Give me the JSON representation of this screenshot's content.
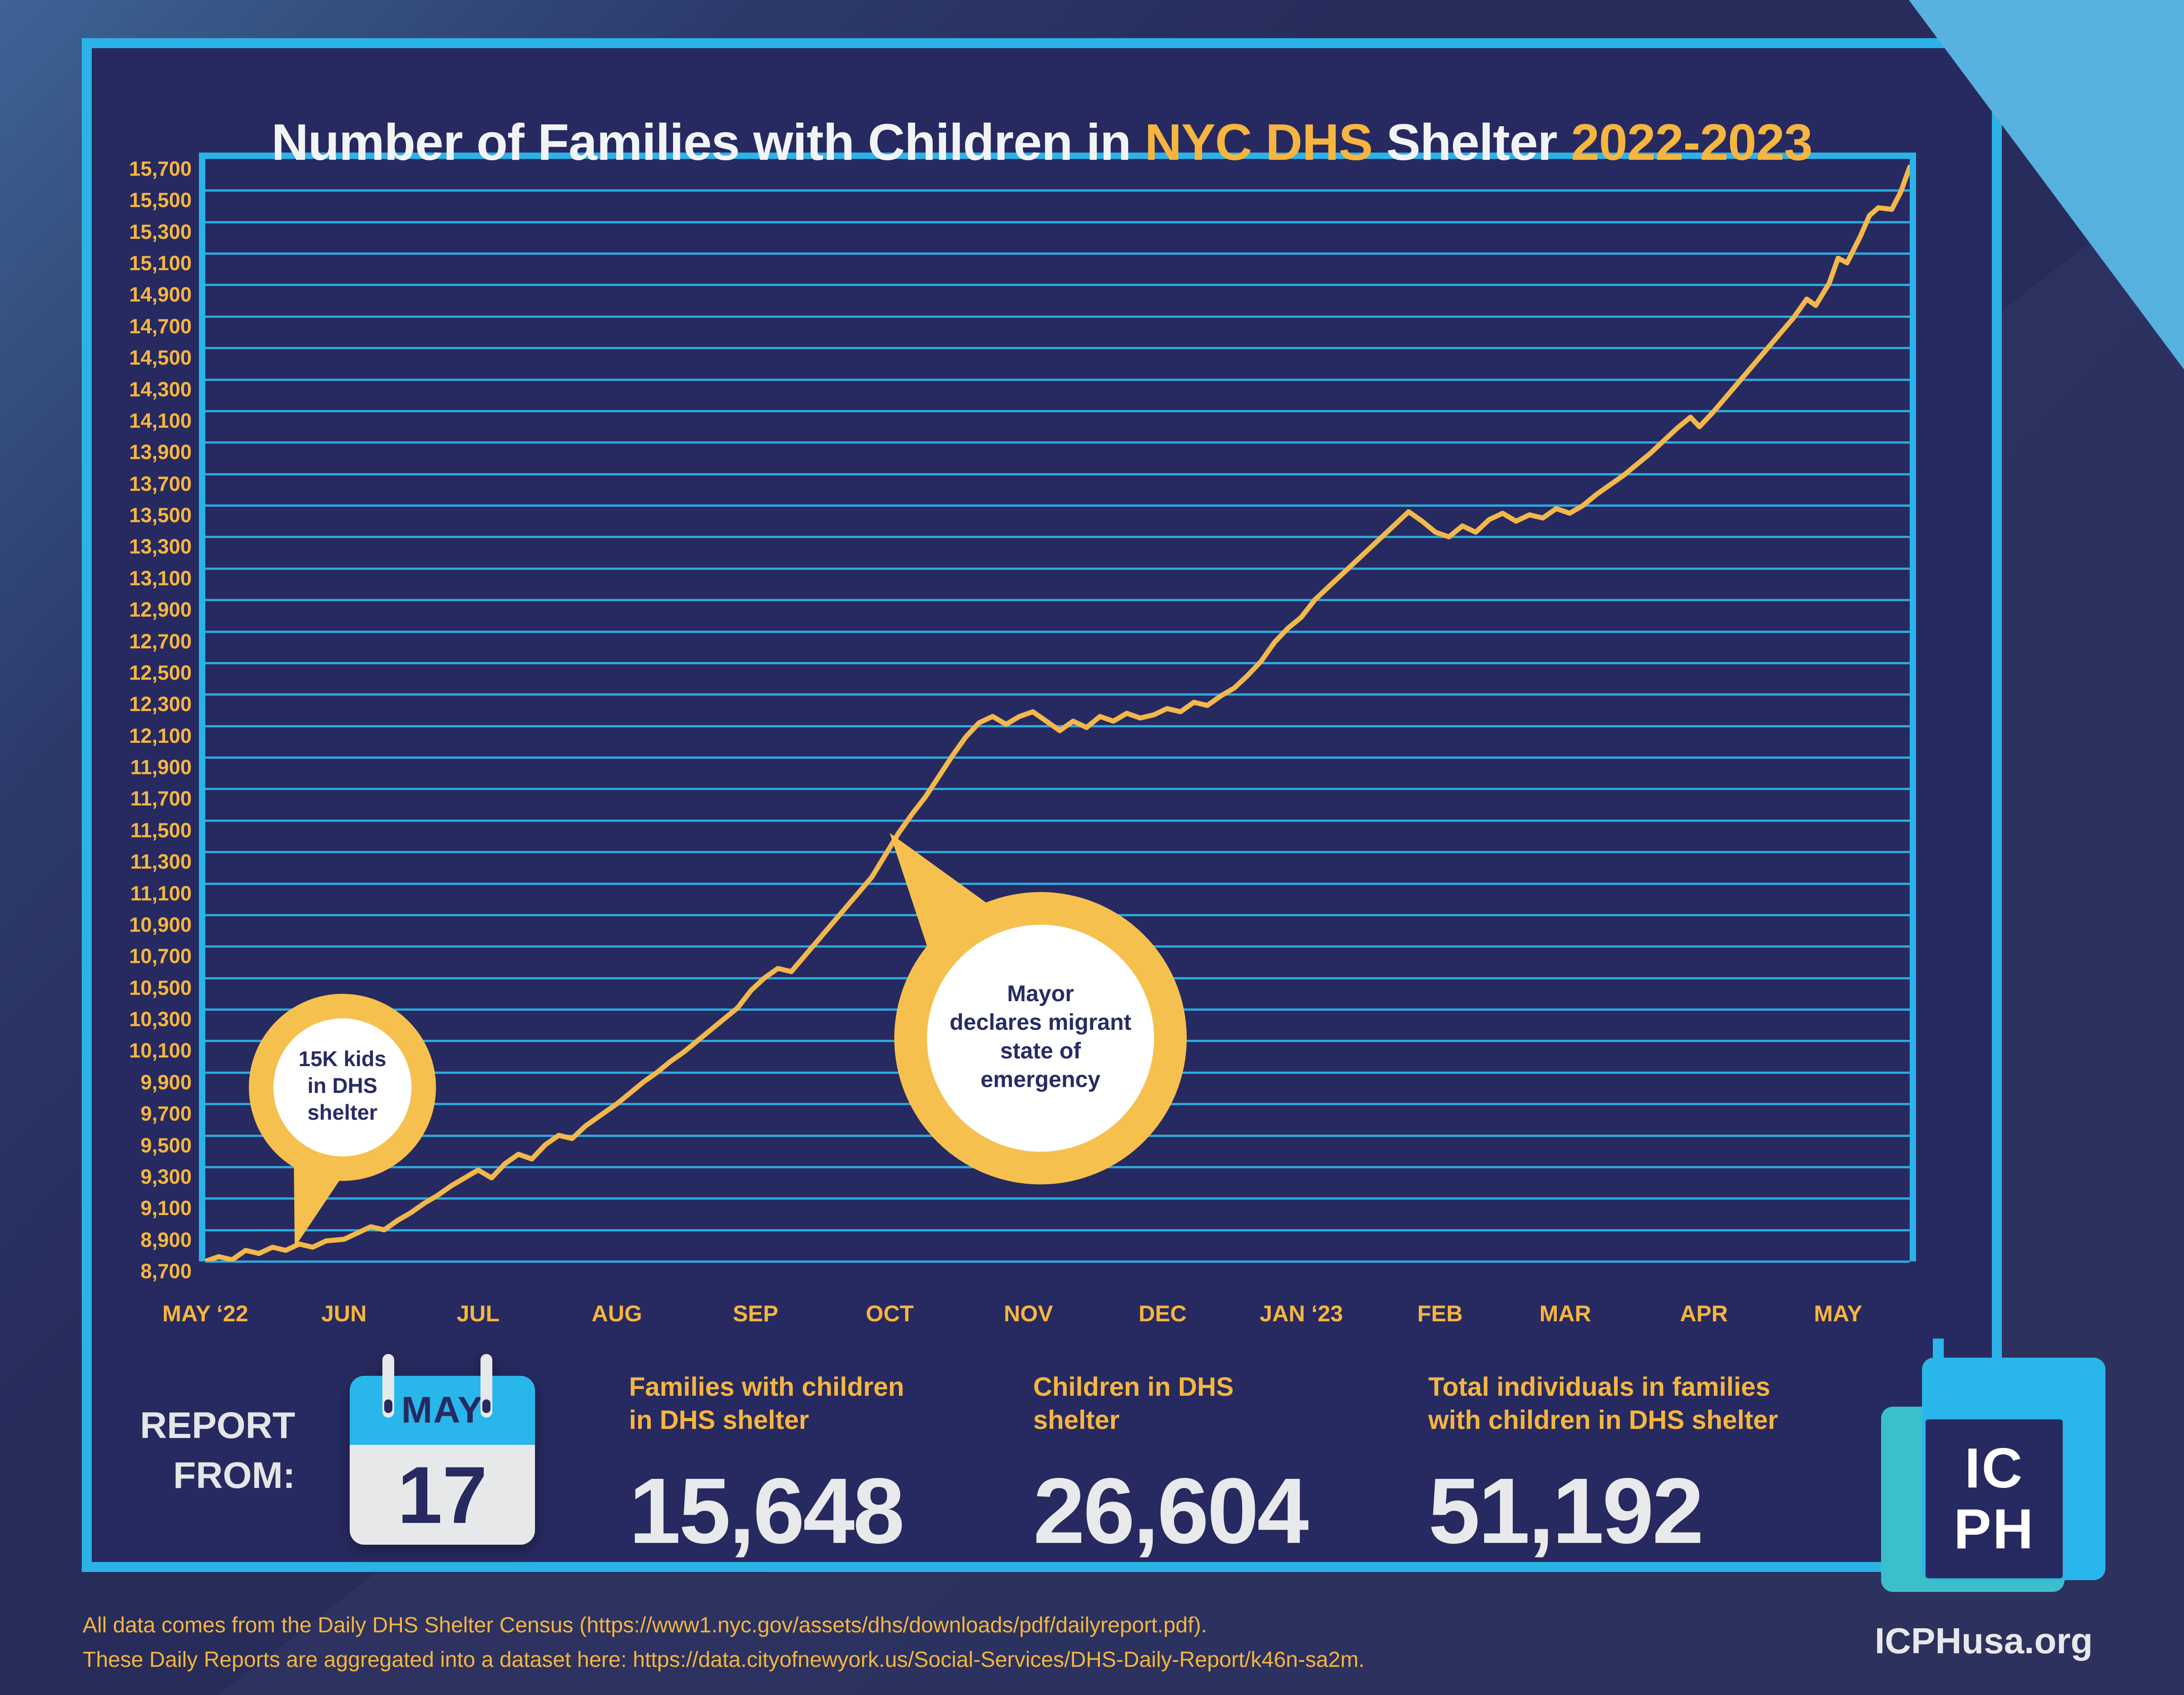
{
  "title": {
    "part1": "Number of Families with Children in ",
    "highlight1": "NYC DHS",
    "part2": " Shelter ",
    "highlight2": "2022-2023"
  },
  "colors": {
    "panel_navy": "#272A60",
    "panel_border_cyan": "#2BB3E8",
    "gridline_cyan": "#2BB0E5",
    "line_gold": "#F2B84B",
    "label_gold": "#F5B53F",
    "bubble_gold": "#F6C04E",
    "bubble_text_navy": "#282B63",
    "text_light_gray": "#E7E8EA",
    "calendar_blue": "#29B6EA",
    "logo_teal": "#3ABFCB",
    "logo_blue": "#29B6EA",
    "corner_light_blue": "#55B0E0",
    "outer_steel_blue": "#3E6396",
    "outer_dark_navy": "#262B58"
  },
  "chart_data": {
    "type": "line",
    "title": "Number of Families with Children in NYC DHS Shelter 2022-2023",
    "xlabel": "",
    "ylabel": "Families with children in DHS shelter",
    "ylim": [
      8700,
      15700
    ],
    "ytick_step": 200,
    "grid": "horizontal cyan gridlines at every 200",
    "legend": "none",
    "x_axis": {
      "start_label": "MAY ‘22",
      "end_date_shown": "MAY 17 2023",
      "months": [
        {
          "label": "MAY ‘22",
          "day": 0
        },
        {
          "label": "JUN",
          "day": 31
        },
        {
          "label": "JUL",
          "day": 61
        },
        {
          "label": "AUG",
          "day": 92
        },
        {
          "label": "SEP",
          "day": 123
        },
        {
          "label": "OCT",
          "day": 153
        },
        {
          "label": "NOV",
          "day": 184
        },
        {
          "label": "DEC",
          "day": 214
        },
        {
          "label": "JAN ‘23",
          "day": 245
        },
        {
          "label": "FEB",
          "day": 276
        },
        {
          "label": "MAR",
          "day": 304
        },
        {
          "label": "APR",
          "day": 335
        },
        {
          "label": "MAY",
          "day": 365
        }
      ],
      "total_days": 381
    },
    "series": [
      {
        "name": "Families with children in DHS shelter",
        "color": "#F2B84B",
        "points": [
          [
            0,
            8700
          ],
          [
            3,
            8730
          ],
          [
            6,
            8710
          ],
          [
            9,
            8770
          ],
          [
            12,
            8750
          ],
          [
            15,
            8790
          ],
          [
            18,
            8770
          ],
          [
            21,
            8810
          ],
          [
            24,
            8790
          ],
          [
            27,
            8830
          ],
          [
            31,
            8840
          ],
          [
            34,
            8880
          ],
          [
            37,
            8920
          ],
          [
            40,
            8900
          ],
          [
            43,
            8960
          ],
          [
            46,
            9010
          ],
          [
            49,
            9070
          ],
          [
            52,
            9120
          ],
          [
            55,
            9180
          ],
          [
            58,
            9230
          ],
          [
            61,
            9280
          ],
          [
            64,
            9230
          ],
          [
            67,
            9320
          ],
          [
            70,
            9380
          ],
          [
            73,
            9350
          ],
          [
            76,
            9440
          ],
          [
            79,
            9500
          ],
          [
            82,
            9480
          ],
          [
            85,
            9560
          ],
          [
            88,
            9620
          ],
          [
            92,
            9700
          ],
          [
            95,
            9770
          ],
          [
            98,
            9840
          ],
          [
            101,
            9900
          ],
          [
            104,
            9970
          ],
          [
            107,
            10030
          ],
          [
            110,
            10100
          ],
          [
            113,
            10170
          ],
          [
            116,
            10240
          ],
          [
            119,
            10310
          ],
          [
            122,
            10420
          ],
          [
            125,
            10500
          ],
          [
            128,
            10560
          ],
          [
            131,
            10540
          ],
          [
            134,
            10640
          ],
          [
            137,
            10740
          ],
          [
            140,
            10840
          ],
          [
            143,
            10940
          ],
          [
            146,
            11040
          ],
          [
            149,
            11140
          ],
          [
            152,
            11280
          ],
          [
            155,
            11420
          ],
          [
            158,
            11540
          ],
          [
            161,
            11650
          ],
          [
            164,
            11780
          ],
          [
            167,
            11910
          ],
          [
            170,
            12030
          ],
          [
            173,
            12120
          ],
          [
            176,
            12160
          ],
          [
            179,
            12110
          ],
          [
            182,
            12160
          ],
          [
            185,
            12190
          ],
          [
            188,
            12130
          ],
          [
            191,
            12070
          ],
          [
            194,
            12130
          ],
          [
            197,
            12090
          ],
          [
            200,
            12160
          ],
          [
            203,
            12130
          ],
          [
            206,
            12180
          ],
          [
            209,
            12150
          ],
          [
            212,
            12170
          ],
          [
            215,
            12210
          ],
          [
            218,
            12190
          ],
          [
            221,
            12250
          ],
          [
            224,
            12230
          ],
          [
            227,
            12290
          ],
          [
            230,
            12340
          ],
          [
            233,
            12420
          ],
          [
            236,
            12510
          ],
          [
            239,
            12630
          ],
          [
            242,
            12720
          ],
          [
            245,
            12790
          ],
          [
            248,
            12900
          ],
          [
            251,
            12980
          ],
          [
            254,
            13060
          ],
          [
            257,
            13140
          ],
          [
            260,
            13220
          ],
          [
            263,
            13300
          ],
          [
            266,
            13380
          ],
          [
            269,
            13460
          ],
          [
            272,
            13400
          ],
          [
            275,
            13330
          ],
          [
            278,
            13300
          ],
          [
            281,
            13370
          ],
          [
            284,
            13330
          ],
          [
            287,
            13410
          ],
          [
            290,
            13450
          ],
          [
            293,
            13400
          ],
          [
            296,
            13440
          ],
          [
            299,
            13420
          ],
          [
            302,
            13480
          ],
          [
            305,
            13450
          ],
          [
            308,
            13500
          ],
          [
            311,
            13570
          ],
          [
            314,
            13630
          ],
          [
            317,
            13690
          ],
          [
            320,
            13760
          ],
          [
            323,
            13830
          ],
          [
            326,
            13910
          ],
          [
            329,
            13990
          ],
          [
            332,
            14060
          ],
          [
            334,
            14000
          ],
          [
            337,
            14090
          ],
          [
            340,
            14190
          ],
          [
            343,
            14290
          ],
          [
            346,
            14390
          ],
          [
            349,
            14490
          ],
          [
            352,
            14590
          ],
          [
            355,
            14690
          ],
          [
            358,
            14810
          ],
          [
            360,
            14770
          ],
          [
            363,
            14910
          ],
          [
            365,
            15070
          ],
          [
            367,
            15040
          ],
          [
            370,
            15210
          ],
          [
            372,
            15340
          ],
          [
            374,
            15390
          ],
          [
            377,
            15380
          ],
          [
            379,
            15490
          ],
          [
            381,
            15648
          ]
        ]
      }
    ],
    "annotations": [
      {
        "lines": [
          "15K kids",
          "in DHS",
          "shelter"
        ],
        "anchor_day": 20,
        "anchor_value": 8790
      },
      {
        "lines": [
          "Mayor",
          "declares migrant",
          "state of",
          "emergency"
        ],
        "anchor_day": 153,
        "anchor_value": 11420
      }
    ]
  },
  "report": {
    "label_line1": "REPORT",
    "label_line2": "FROM:",
    "calendar_month": "MAY",
    "calendar_day": "17"
  },
  "stats": [
    {
      "label": [
        "Families with children",
        "in DHS shelter"
      ],
      "value": "15,648"
    },
    {
      "label": [
        "Children in DHS",
        "shelter"
      ],
      "value": "26,604"
    },
    {
      "label": [
        "Total individuals in families",
        "with children in DHS shelter"
      ],
      "value": "51,192"
    }
  ],
  "footer": {
    "line1": "All data comes from the Daily DHS Shelter Census (https://www1.nyc.gov/assets/dhs/downloads/pdf/dailyreport.pdf).",
    "line2": "These Daily Reports are aggregated into a dataset here: https://data.cityofnewyork.us/Social-Services/DHS-Daily-Report/k46n-sa2m."
  },
  "logo": {
    "top": "IC",
    "bottom": "PH",
    "site": "ICPHusa.org"
  }
}
